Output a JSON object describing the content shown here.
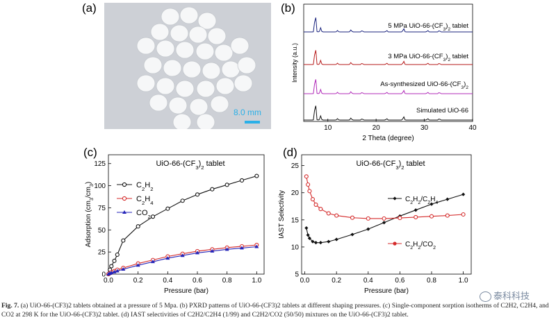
{
  "panels": {
    "a": {
      "label": "(a)",
      "scale_bar": "8.0 mm"
    },
    "b": {
      "label": "(b)"
    },
    "c": {
      "label": "(c)"
    },
    "d": {
      "label": "(d)"
    }
  },
  "caption": {
    "fig": "Fig. 7.",
    "text": "(a) UiO-66-(CF3)2 tablets obtained at a pressure of 5 Mpa. (b) PXRD patterns of UiO-66-(CF3)2 tablets at different shaping pressures. (c) Single-component sorption isotherms of C2H2, C2H4, and CO2 at 298 K for the UiO-66-(CF3)2 tablet. (d) IAST selectivities of C2H2/C2H4 (1/99) and C2H2/CO2 (50/50) mixtures on the UiO-66-(CF3)2 tablet."
  },
  "watermark": "泰科科技",
  "colors": {
    "c2h2": "#111111",
    "c2h4": "#d42a2a",
    "co2": "#2323b8",
    "pxrd_5": "#1a237e",
    "pxrd_3": "#b71c1c",
    "pxrd_as": "#b02ab8",
    "pxrd_sim": "#111111"
  },
  "chart_data": [
    {
      "type": "line",
      "panel": "b",
      "title": "",
      "xlabel": "2 Theta (degree)",
      "ylabel": "Intensity (a.u.)",
      "xlim": [
        5,
        40
      ],
      "xticks": [
        10,
        20,
        30,
        40
      ],
      "series": [
        {
          "name": "5 MPa   UiO-66-(CF3)2 tablet",
          "color": "#1a237e"
        },
        {
          "name": "3 MPa   UiO-66-(CF3)2 tablet",
          "color": "#b71c1c"
        },
        {
          "name": "As-synthesized UiO-66-(CF3)2",
          "color": "#b02ab8"
        },
        {
          "name": "Simulated UiO-66",
          "color": "#111111"
        }
      ],
      "peaks_2theta": [
        7.4,
        8.5,
        12.0,
        14.8,
        17.1,
        22.2,
        25.7,
        30.7,
        33.1
      ]
    },
    {
      "type": "line",
      "panel": "c",
      "title": "UiO-66-(CF3)2 tablet",
      "xlabel": "Pressure (bar)",
      "ylabel": "Adsorption (cm3/cm3)",
      "xlim": [
        0,
        1.05
      ],
      "ylim": [
        0,
        135
      ],
      "xticks": [
        "0.0",
        "0.2",
        "0.4",
        "0.6",
        "0.8",
        "1.0"
      ],
      "yticks": [
        "0",
        "25",
        "50",
        "75",
        "100",
        "125"
      ],
      "legend": "top-left",
      "x": [
        0.0,
        0.01,
        0.02,
        0.04,
        0.06,
        0.1,
        0.2,
        0.3,
        0.4,
        0.5,
        0.6,
        0.7,
        0.8,
        0.9,
        1.0
      ],
      "series": [
        {
          "name": "C2H2",
          "color": "#111111",
          "marker": "circle",
          "values": [
            0,
            5,
            9,
            15,
            22,
            38,
            54,
            65,
            74,
            83,
            90,
            96,
            101,
            106,
            111
          ]
        },
        {
          "name": "C2H4",
          "color": "#d42a2a",
          "marker": "circle",
          "values": [
            0,
            1,
            2,
            3.5,
            5,
            7,
            12,
            16,
            20,
            23,
            26,
            28,
            30,
            31.5,
            33
          ]
        },
        {
          "name": "CO2",
          "color": "#2323b8",
          "marker": "triangle",
          "values": [
            0,
            0.8,
            1.5,
            2.5,
            3.5,
            5.5,
            10,
            14,
            18,
            21,
            24,
            26,
            28,
            29.5,
            31
          ]
        }
      ]
    },
    {
      "type": "line",
      "panel": "d",
      "title": "UiO-66-(CF3)2 tablet",
      "xlabel": "Pressure (bar)",
      "ylabel": "IAST Selectivity",
      "xlim": [
        -0.02,
        1.05
      ],
      "ylim": [
        5,
        27
      ],
      "xticks": [
        "0.0",
        "0.2",
        "0.4",
        "0.6",
        "0.8",
        "1.0"
      ],
      "yticks": [
        "5",
        "10",
        "15",
        "20",
        "25"
      ],
      "series": [
        {
          "name": "C2H2/C2H4",
          "color": "#111111",
          "marker": "diamond",
          "x": [
            0.01,
            0.02,
            0.03,
            0.05,
            0.07,
            0.1,
            0.15,
            0.2,
            0.3,
            0.4,
            0.5,
            0.6,
            0.7,
            0.8,
            0.9,
            1.0
          ],
          "values": [
            13.5,
            12.2,
            11.6,
            11.0,
            10.8,
            10.8,
            11.0,
            11.4,
            12.3,
            13.3,
            14.5,
            15.7,
            16.8,
            17.9,
            18.8,
            19.7
          ]
        },
        {
          "name": "C2H2/CO2",
          "color": "#d42a2a",
          "marker": "circle",
          "x": [
            0.01,
            0.02,
            0.03,
            0.05,
            0.07,
            0.1,
            0.15,
            0.2,
            0.3,
            0.4,
            0.5,
            0.6,
            0.7,
            0.8,
            0.9,
            1.0
          ],
          "values": [
            23.0,
            21.5,
            20.3,
            18.8,
            17.8,
            17.0,
            16.2,
            15.8,
            15.4,
            15.25,
            15.25,
            15.35,
            15.5,
            15.65,
            15.8,
            16.0
          ]
        }
      ]
    }
  ]
}
